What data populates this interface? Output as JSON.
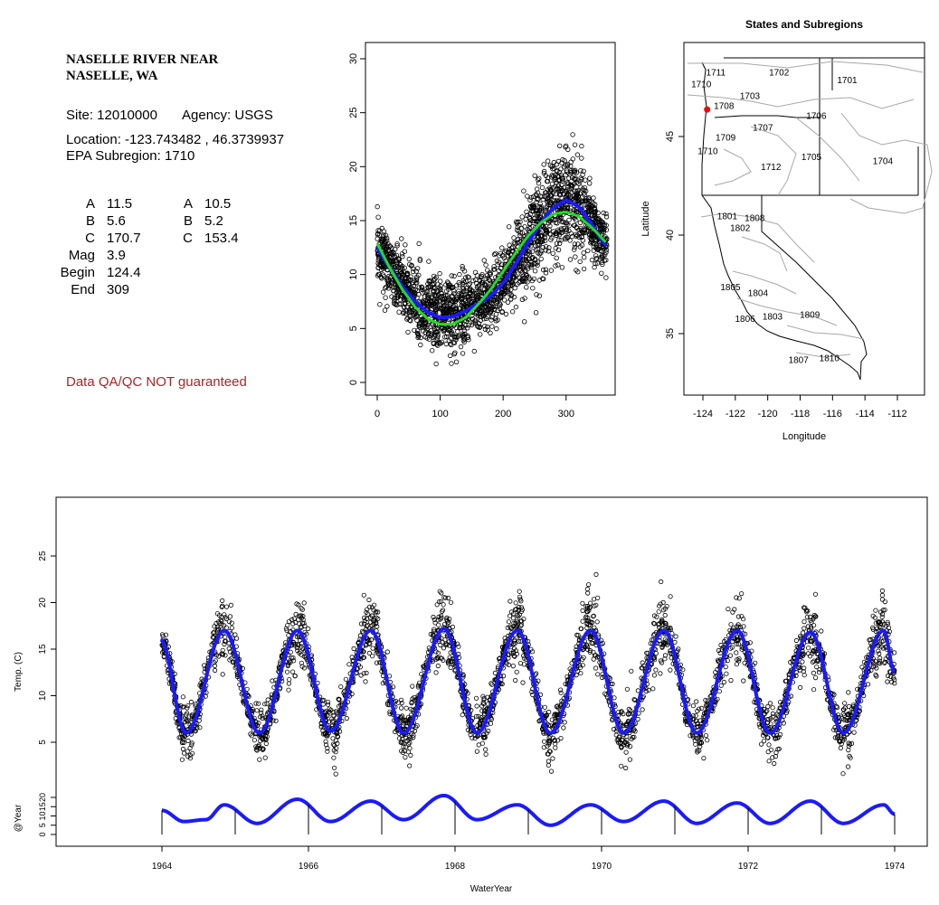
{
  "site": {
    "name_line1": "NASELLE RIVER NEAR",
    "name_line2": "NASELLE, WA",
    "site_line": "Site: 12010000",
    "agency_line": "Agency: USGS",
    "location_line": "Location: -123.743482 , 46.3739937",
    "subregion_line": "EPA Subregion: 1710"
  },
  "params": {
    "left": [
      {
        "label": "A",
        "value": "11.5"
      },
      {
        "label": "B",
        "value": "5.6"
      },
      {
        "label": "C",
        "value": "170.7"
      },
      {
        "label": "Mag",
        "value": "3.9"
      },
      {
        "label": "Begin",
        "value": "124.4"
      },
      {
        "label": "End",
        "value": "309"
      }
    ],
    "right": [
      {
        "label": "A",
        "value": "10.5"
      },
      {
        "label": "B",
        "value": "5.2"
      },
      {
        "label": "C",
        "value": "153.4"
      }
    ]
  },
  "warning": "Data QA/QC NOT guaranteed",
  "colors": {
    "fit_blue": "#1a1aff",
    "fit_green": "#22dd22",
    "points": "#000000",
    "site_marker": "#ff0000",
    "warning": "#b22222"
  },
  "chart_data": [
    {
      "type": "scatter",
      "xlim": [
        0,
        365
      ],
      "ylim": [
        0,
        30
      ],
      "x_ticks": [
        "0",
        "100",
        "200",
        "300"
      ],
      "y_ticks": [
        "0",
        "5",
        "10",
        "15",
        "20",
        "25",
        "30"
      ],
      "fits": [
        {
          "color": "blue",
          "x": [
            0,
            20,
            40,
            60,
            80,
            100,
            120,
            140,
            160,
            180,
            200,
            220,
            240,
            260,
            280,
            300,
            320,
            340,
            365
          ],
          "y": [
            12.5,
            10.6,
            8.9,
            7.5,
            6.5,
            6.0,
            6.1,
            6.6,
            7.3,
            8.0,
            9.2,
            11.0,
            13.0,
            14.8,
            16.2,
            16.9,
            16.3,
            14.7,
            12.5
          ]
        },
        {
          "color": "green",
          "x": [
            0,
            20,
            40,
            60,
            80,
            100,
            120,
            140,
            160,
            180,
            200,
            220,
            240,
            260,
            280,
            300,
            320,
            340,
            365
          ],
          "y": [
            12.9,
            10.6,
            8.6,
            7.0,
            5.9,
            5.4,
            5.4,
            6.0,
            7.2,
            8.6,
            10.3,
            12.0,
            13.6,
            14.8,
            15.6,
            15.8,
            15.4,
            14.4,
            12.9
          ]
        }
      ]
    },
    {
      "type": "map",
      "title": "States and Subregions",
      "xlabel": "Longitude",
      "ylabel": "Latitude",
      "xlim": [
        -125.3,
        -110.8
      ],
      "ylim": [
        32.2,
        49.1
      ],
      "x_ticks": [
        "-124",
        "-122",
        "-120",
        "-118",
        "-116",
        "-114",
        "-112"
      ],
      "y_ticks": [
        "35",
        "40",
        "45"
      ],
      "site_marker": {
        "lon": -123.74,
        "lat": 46.37
      },
      "region_labels": [
        {
          "text": "1711",
          "lon": -123.2,
          "lat": 48.1
        },
        {
          "text": "1702",
          "lon": -119.3,
          "lat": 48.1
        },
        {
          "text": "1701",
          "lon": -115.1,
          "lat": 47.7
        },
        {
          "text": "1710",
          "lon": -124.1,
          "lat": 47.5
        },
        {
          "text": "1703",
          "lon": -121.1,
          "lat": 46.9
        },
        {
          "text": "1708",
          "lon": -122.7,
          "lat": 46.4
        },
        {
          "text": "1706",
          "lon": -117.0,
          "lat": 45.9
        },
        {
          "text": "1707",
          "lon": -120.3,
          "lat": 45.3
        },
        {
          "text": "1709",
          "lon": -122.6,
          "lat": 44.8
        },
        {
          "text": "1710",
          "lon": -123.7,
          "lat": 44.1
        },
        {
          "text": "1705",
          "lon": -117.3,
          "lat": 43.8
        },
        {
          "text": "1704",
          "lon": -112.9,
          "lat": 43.6
        },
        {
          "text": "1712",
          "lon": -119.8,
          "lat": 43.3
        },
        {
          "text": "1801",
          "lon": -122.5,
          "lat": 40.8
        },
        {
          "text": "1808",
          "lon": -120.8,
          "lat": 40.7
        },
        {
          "text": "1802",
          "lon": -121.7,
          "lat": 40.2
        },
        {
          "text": "1805",
          "lon": -122.3,
          "lat": 37.2
        },
        {
          "text": "1804",
          "lon": -120.6,
          "lat": 36.9
        },
        {
          "text": "1806",
          "lon": -121.4,
          "lat": 35.6
        },
        {
          "text": "1803",
          "lon": -119.7,
          "lat": 35.7
        },
        {
          "text": "1809",
          "lon": -117.4,
          "lat": 35.8
        },
        {
          "text": "1807",
          "lon": -118.1,
          "lat": 33.5
        },
        {
          "text": "1810",
          "lon": -116.2,
          "lat": 33.6
        }
      ]
    },
    {
      "type": "line",
      "xlabel": "WaterYear",
      "ylabel": "Temp. (C)",
      "ylabel2": "@Year",
      "xlim": [
        1962.7,
        1974.4
      ],
      "ylim": [
        2,
        30
      ],
      "x_ticks": [
        "1964",
        "1966",
        "1968",
        "1970",
        "1972",
        "1974"
      ],
      "y_ticks": [
        "5",
        "10",
        "15",
        "20",
        "25"
      ],
      "y2_ticks": [
        "0",
        "5",
        "10",
        "15",
        "20"
      ],
      "years": [
        1964,
        1965,
        1966,
        1967,
        1968,
        1969,
        1970,
        1971,
        1972,
        1973,
        1974
      ],
      "peaks": [
        {
          "x": 1964.85,
          "y": 17.0
        },
        {
          "x": 1965.85,
          "y": 17.0
        },
        {
          "x": 1966.85,
          "y": 17.0
        },
        {
          "x": 1967.85,
          "y": 17.2
        },
        {
          "x": 1968.85,
          "y": 17.0
        },
        {
          "x": 1969.85,
          "y": 17.0
        },
        {
          "x": 1970.85,
          "y": 17.0
        },
        {
          "x": 1971.85,
          "y": 17.0
        },
        {
          "x": 1972.85,
          "y": 16.8
        },
        {
          "x": 1973.85,
          "y": 17.0
        }
      ],
      "troughs": [
        {
          "x": 1964.33,
          "y": 6.0
        },
        {
          "x": 1965.33,
          "y": 6.0
        },
        {
          "x": 1966.3,
          "y": 6.2
        },
        {
          "x": 1967.3,
          "y": 6.0
        },
        {
          "x": 1968.3,
          "y": 6.0
        },
        {
          "x": 1969.3,
          "y": 6.0
        },
        {
          "x": 1970.3,
          "y": 6.0
        },
        {
          "x": 1971.3,
          "y": 6.0
        },
        {
          "x": 1972.3,
          "y": 6.0
        },
        {
          "x": 1973.3,
          "y": 6.0
        }
      ],
      "annual_series": [
        {
          "x": 1964.0,
          "y": 13
        },
        {
          "x": 1964.3,
          "y": 7
        },
        {
          "x": 1964.6,
          "y": 8
        },
        {
          "x": 1964.85,
          "y": 16
        },
        {
          "x": 1965.3,
          "y": 6
        },
        {
          "x": 1965.85,
          "y": 19
        },
        {
          "x": 1966.3,
          "y": 7
        },
        {
          "x": 1966.85,
          "y": 18
        },
        {
          "x": 1967.3,
          "y": 8
        },
        {
          "x": 1967.85,
          "y": 21
        },
        {
          "x": 1968.3,
          "y": 8
        },
        {
          "x": 1968.85,
          "y": 16
        },
        {
          "x": 1969.3,
          "y": 5
        },
        {
          "x": 1969.85,
          "y": 16
        },
        {
          "x": 1970.3,
          "y": 7
        },
        {
          "x": 1970.85,
          "y": 18
        },
        {
          "x": 1971.3,
          "y": 6
        },
        {
          "x": 1971.85,
          "y": 17
        },
        {
          "x": 1972.3,
          "y": 6
        },
        {
          "x": 1972.85,
          "y": 18
        },
        {
          "x": 1973.3,
          "y": 6
        },
        {
          "x": 1973.85,
          "y": 16
        },
        {
          "x": 1974.0,
          "y": 11
        }
      ]
    }
  ]
}
